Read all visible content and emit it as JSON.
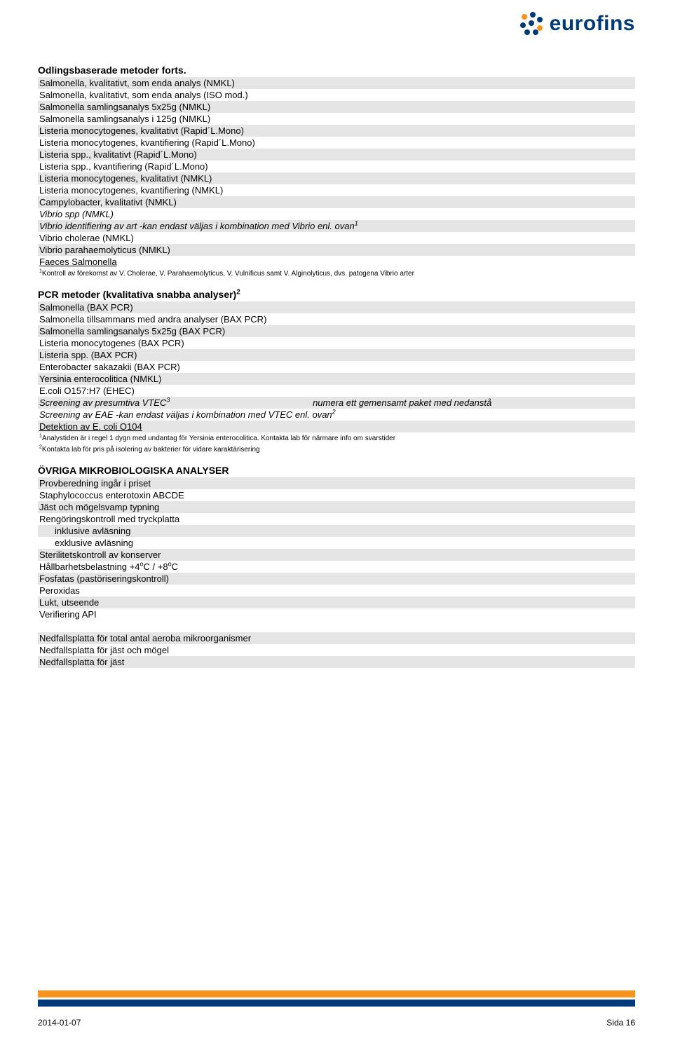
{
  "logo": {
    "text": "eurofins"
  },
  "section1": {
    "title": "Odlingsbaserade metoder forts.",
    "rows": [
      {
        "text": "Salmonella, kvalitativt, som enda analys (NMKL)",
        "grey": true
      },
      {
        "text": "Salmonella, kvalitativt, som enda analys (ISO mod.)",
        "grey": false
      },
      {
        "text": "Salmonella samlingsanalys 5x25g (NMKL)",
        "grey": true
      },
      {
        "text": "Salmonella samlingsanalys i 125g (NMKL)",
        "grey": false
      },
      {
        "text": "Listeria monocytogenes, kvalitativt (Rapid´L.Mono)",
        "grey": true
      },
      {
        "text": "Listeria monocytogenes, kvantifiering (Rapid´L.Mono)",
        "grey": false
      },
      {
        "text": "Listeria spp., kvalitativt (Rapid´L.Mono)",
        "grey": true
      },
      {
        "text": "Listeria spp., kvantifiering (Rapid´L.Mono)",
        "grey": false
      },
      {
        "text": "Listeria monocytogenes, kvalitativt (NMKL)",
        "grey": true
      },
      {
        "text": "Listeria monocytogenes, kvantifiering (NMKL)",
        "grey": false
      },
      {
        "text": "Campylobacter, kvalitativt (NMKL)",
        "grey": true
      },
      {
        "text": "Vibrio spp (NMKL)",
        "grey": false,
        "italic": true
      }
    ],
    "vibrio_id_pre": "Vibrio identifiering av art -kan endast väljas i kombination med Vibrio enl. ovan",
    "vibrio_id_sup": "1",
    "rows2": [
      {
        "text": "Vibrio cholerae (NMKL)",
        "grey": false
      },
      {
        "text": "Vibrio parahaemolyticus (NMKL)",
        "grey": true
      },
      {
        "text": "Faeces Salmonella",
        "grey": false,
        "underline": true
      }
    ],
    "footnote_sup": "1",
    "footnote": "Kontroll av förekomst av V. Cholerae, V. Parahaemolyticus, V. Vulnificus samt V. Alginolyticus, dvs. patogena Vibrio arter"
  },
  "section2": {
    "title_pre": "PCR metoder (kvalitativa snabba analyser)",
    "title_sup": "2",
    "rows": [
      {
        "text": "Salmonella (BAX PCR)",
        "grey": true
      },
      {
        "text": "Salmonella tillsammans med andra analyser (BAX PCR)",
        "grey": false
      },
      {
        "text": "Salmonella samlingsanalys 5x25g (BAX PCR)",
        "grey": true
      },
      {
        "text": "Listeria monocytogenes (BAX PCR)",
        "grey": false
      },
      {
        "text": "Listeria spp. (BAX PCR)",
        "grey": true
      },
      {
        "text": "Enterobacter sakazakii (BAX PCR)",
        "grey": false
      },
      {
        "text": "Yersinia enterocolitica (NMKL)",
        "grey": true
      },
      {
        "text": "E.coli O157:H7 (EHEC)",
        "grey": false
      }
    ],
    "vtec_left": "Screening av presumtiva VTEC",
    "vtec_sup": "3",
    "vtec_right": "numera ett gemensamt paket med nedanstå",
    "eae_pre": "Screening av EAE -kan endast väljas i kombination med VTEC enl. ovan",
    "eae_sup": "2",
    "detect": "Detektion av E. coli O104",
    "footnote1_sup": "1",
    "footnote1": "Analystiden är i regel 1 dygn med undantag för Yersinia enterocolitica. Kontakta lab för närmare info om svarstider",
    "footnote2_sup": "2",
    "footnote2": "Kontakta lab för pris på isolering av bakterier för vidare karaktärisering"
  },
  "section3": {
    "title": "ÖVRIGA MIKROBIOLOGISKA ANALYSER",
    "rows": [
      {
        "text": "Provberedning ingår i priset",
        "grey": true
      },
      {
        "text": "Staphylococcus enterotoxin ABCDE",
        "grey": false
      },
      {
        "text": "Jäst och mögelsvamp typning",
        "grey": true
      },
      {
        "text": "Rengöringskontroll med tryckplatta",
        "grey": false
      },
      {
        "text": "inklusive avläsning",
        "grey": true,
        "indent": true
      },
      {
        "text": "exklusive avläsning",
        "grey": false,
        "indent": true
      },
      {
        "text": "Sterilitetskontroll av konserver",
        "grey": true
      }
    ],
    "hallbar_pre": "Hållbarhetsbelastning +4",
    "hallbar_mid": "C / +8",
    "hallbar_end": "C",
    "deg": "o",
    "rows2": [
      {
        "text": "Fosfatas (pastöriseringskontroll)",
        "grey": true
      },
      {
        "text": "Peroxidas",
        "grey": false
      },
      {
        "text": "Lukt, utseende",
        "grey": true
      },
      {
        "text": "Verifiering API",
        "grey": false
      }
    ],
    "rows3": [
      {
        "text": "Nedfallsplatta för total antal aeroba mikroorganismer",
        "grey": true
      },
      {
        "text": "Nedfallsplatta för jäst och mögel",
        "grey": false
      },
      {
        "text": "Nedfallsplatta för jäst",
        "grey": true
      }
    ]
  },
  "footer": {
    "date": "2014-01-07",
    "page": "Sida 16"
  },
  "colors": {
    "grey_row": "#e5e5e5",
    "orange": "#f7941d",
    "blue": "#003a78",
    "text": "#000000",
    "background": "#ffffff"
  }
}
